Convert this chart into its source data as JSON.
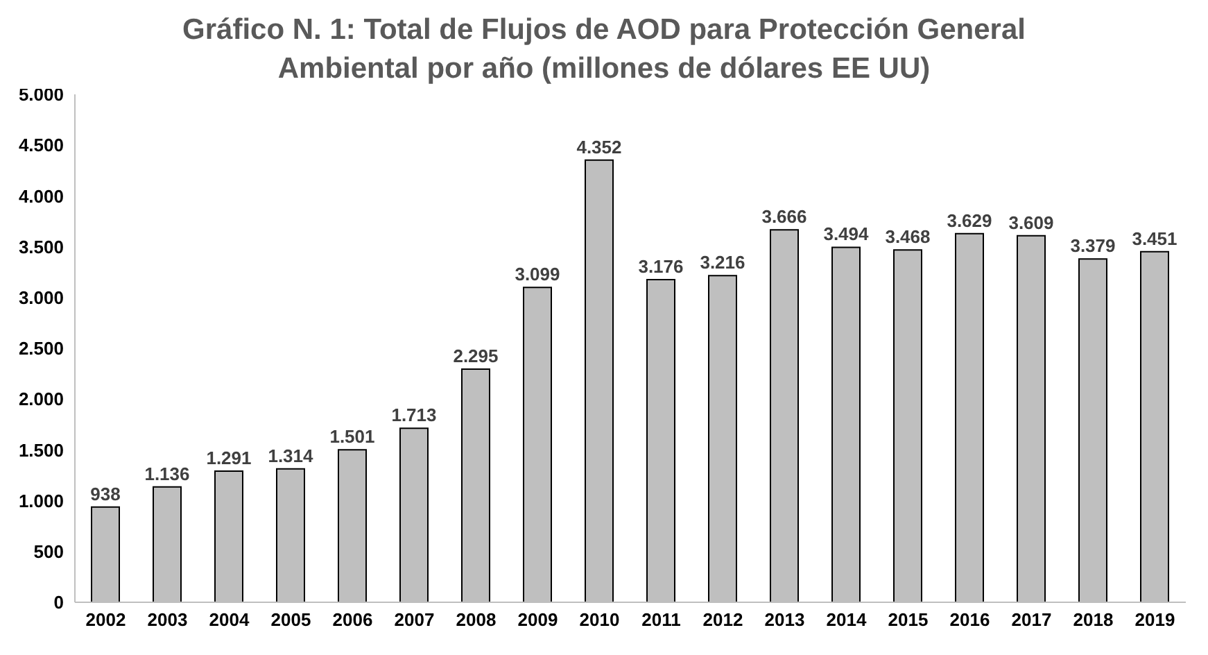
{
  "chart_data": {
    "type": "bar",
    "title": "Gráfico N. 1: Total de Flujos de AOD para Protección General Ambiental por año (millones de dólares EE UU)",
    "categories": [
      "2002",
      "2003",
      "2004",
      "2005",
      "2006",
      "2007",
      "2008",
      "2009",
      "2010",
      "2011",
      "2012",
      "2013",
      "2014",
      "2015",
      "2016",
      "2017",
      "2018",
      "2019"
    ],
    "values": [
      938,
      1136,
      1291,
      1314,
      1501,
      1713,
      2295,
      3099,
      4352,
      3176,
      3216,
      3666,
      3494,
      3468,
      3629,
      3609,
      3379,
      3451
    ],
    "value_labels": [
      "938",
      "1.136",
      "1.291",
      "1.314",
      "1.501",
      "1.713",
      "2.295",
      "3.099",
      "4.352",
      "3.176",
      "3.216",
      "3.666",
      "3.494",
      "3.468",
      "3.629",
      "3.609",
      "3.379",
      "3.451"
    ],
    "color": "#bfbfbf",
    "ylim": [
      0,
      5000
    ],
    "yticks": [
      0,
      {
        "value": 500,
        "label": "500"
      },
      {
        "value": 1000,
        "label": "1.000"
      },
      {
        "value": 1500,
        "label": "1.500"
      },
      {
        "value": 2000,
        "label": "2.000"
      },
      {
        "value": 2500,
        "label": "2.500"
      },
      {
        "value": 3000,
        "label": "3.000"
      },
      {
        "value": 3500,
        "label": "3.500"
      },
      {
        "value": 4000,
        "label": "4.000"
      },
      {
        "value": 4500,
        "label": "4.500"
      },
      {
        "value": 5000,
        "label": "5.000"
      }
    ],
    "grid": false,
    "legend": false
  }
}
